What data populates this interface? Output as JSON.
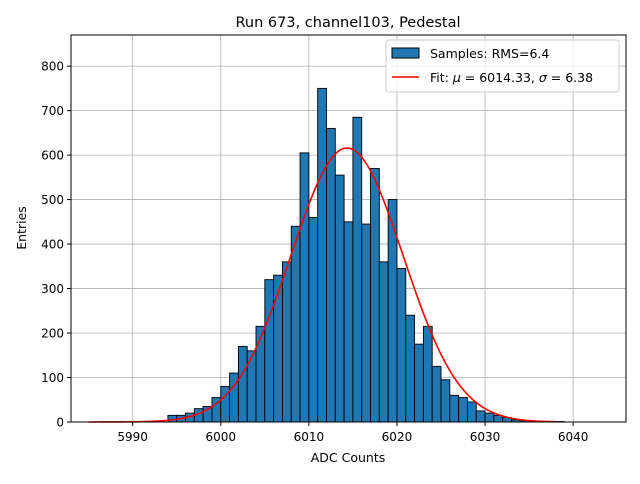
{
  "chart_data": {
    "type": "bar",
    "title": "Run 673, channel103, Pedestal",
    "xlabel": "ADC Counts",
    "ylabel": "Entries",
    "xlim": [
      5983,
      6046
    ],
    "ylim": [
      0,
      870
    ],
    "xticks": [
      5990,
      6000,
      6010,
      6020,
      6030,
      6040
    ],
    "yticks": [
      0,
      100,
      200,
      300,
      400,
      500,
      600,
      700,
      800
    ],
    "grid": true,
    "legend_position": "top-right",
    "bar_color": "#1f77b4",
    "fit_color": "#ff0000",
    "histogram": {
      "name": "Samples: RMS=6.4",
      "bin_width": 1,
      "bin_edges_start": 5994,
      "counts": [
        15,
        15,
        20,
        30,
        35,
        55,
        80,
        110,
        170,
        160,
        215,
        320,
        330,
        360,
        440,
        605,
        460,
        750,
        660,
        555,
        450,
        685,
        445,
        570,
        360,
        500,
        345,
        240,
        175,
        215,
        125,
        95,
        60,
        55,
        45,
        25,
        20,
        15,
        10,
        5,
        3,
        2,
        1,
        1,
        1
      ]
    },
    "fit": {
      "label_prefix": "Fit: ",
      "label_mu_symbol": "μ",
      "label_mu_value": " = 6014.33, ",
      "label_sigma_symbol": "σ",
      "label_sigma_value": " = 6.38",
      "mu": 6014.33,
      "sigma": 6.38,
      "amplitude": 616,
      "x_start": 5985,
      "x_end": 6038
    }
  }
}
